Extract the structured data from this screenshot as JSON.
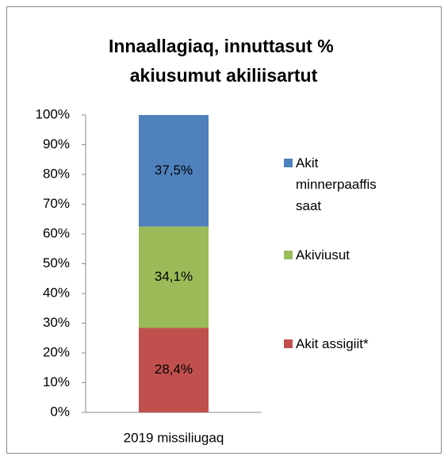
{
  "chart_data": {
    "type": "stacked_bar",
    "title": "Innaallagiaq, innuttasut % akiusumut akiliisartut",
    "categories": [
      "2019 missiliugaq"
    ],
    "series": [
      {
        "name": "Akit assigiit*",
        "color": "#c0504d",
        "values": [
          28.4
        ],
        "value_labels": [
          "28,4%"
        ]
      },
      {
        "name": "Akiviusut",
        "color": "#9bbb59",
        "values": [
          34.1
        ],
        "value_labels": [
          "34,1%"
        ]
      },
      {
        "name": "Akit minnerpaaffis saat",
        "color": "#4f81bd",
        "values": [
          37.5
        ],
        "value_labels": [
          "37,5%"
        ]
      }
    ],
    "ylim": [
      0,
      100
    ],
    "yticks": [
      {
        "value": 0,
        "label": "0%"
      },
      {
        "value": 10,
        "label": "10%"
      },
      {
        "value": 20,
        "label": "20%"
      },
      {
        "value": 30,
        "label": "30%"
      },
      {
        "value": 40,
        "label": "40%"
      },
      {
        "value": 50,
        "label": "50%"
      },
      {
        "value": 60,
        "label": "60%"
      },
      {
        "value": 70,
        "label": "70%"
      },
      {
        "value": 80,
        "label": "80%"
      },
      {
        "value": 90,
        "label": "90%"
      },
      {
        "value": 100,
        "label": "100%"
      }
    ],
    "legend": "right",
    "grid": false
  }
}
